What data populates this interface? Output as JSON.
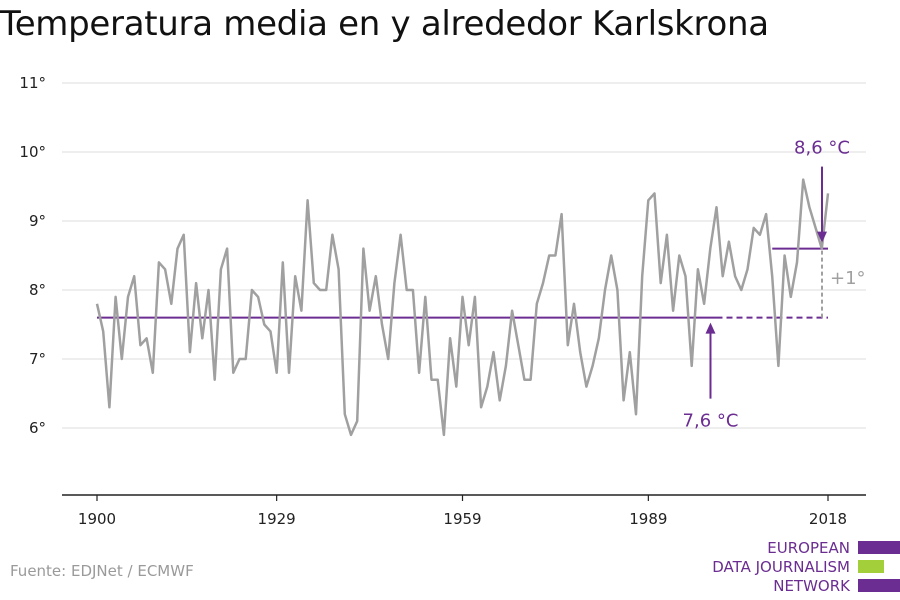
{
  "title": "Temperatura media en y alrededor Karlskrona",
  "source": "Fuente: EDJNet / ECMWF",
  "logo": {
    "lines": [
      "EUROPEAN",
      "DATA JOURNALISM",
      "NETWORK"
    ],
    "colors": [
      "#6b2d91",
      "#a3cf3b",
      "#6b2d91"
    ]
  },
  "colors": {
    "series": "#a0a0a0",
    "accent": "#6b2d91",
    "diff": "#a0a0a0",
    "grid": "#dddddd",
    "axis": "#222222"
  },
  "chart_data": {
    "type": "line",
    "title": "Temperatura media en y alrededor Karlskrona",
    "xlabel": "",
    "ylabel": "",
    "xlim": [
      1900,
      2018
    ],
    "ylim": [
      5,
      11
    ],
    "x_ticks": [
      1900,
      1929,
      1959,
      1989,
      2018
    ],
    "y_ticks": [
      {
        "value": 6,
        "label": "6°"
      },
      {
        "value": 7,
        "label": "7°"
      },
      {
        "value": 8,
        "label": "8°"
      },
      {
        "value": 9,
        "label": "9°"
      },
      {
        "value": 10,
        "label": "10°"
      },
      {
        "value": 11,
        "label": "11°"
      }
    ],
    "grid": true,
    "series": [
      {
        "x": [
          1900,
          1901,
          1902,
          1903,
          1904,
          1905,
          1906,
          1907,
          1908,
          1909,
          1910,
          1911,
          1912,
          1913,
          1914,
          1915,
          1916,
          1917,
          1918,
          1919,
          1920,
          1921,
          1922,
          1923,
          1924,
          1925,
          1926,
          1927,
          1928,
          1929,
          1930,
          1931,
          1932,
          1933,
          1934,
          1935,
          1936,
          1937,
          1938,
          1939,
          1940,
          1941,
          1942,
          1943,
          1944,
          1945,
          1946,
          1947,
          1948,
          1949,
          1950,
          1951,
          1952,
          1953,
          1954,
          1955,
          1956,
          1957,
          1958,
          1959,
          1960,
          1961,
          1962,
          1963,
          1964,
          1965,
          1966,
          1967,
          1968,
          1969,
          1970,
          1971,
          1972,
          1973,
          1974,
          1975,
          1976,
          1977,
          1978,
          1979,
          1980,
          1981,
          1982,
          1983,
          1984,
          1985,
          1986,
          1987,
          1988,
          1989,
          1990,
          1991,
          1992,
          1993,
          1994,
          1995,
          1996,
          1997,
          1998,
          1999,
          2000,
          2001,
          2002,
          2003,
          2004,
          2005,
          2006,
          2007,
          2008,
          2009,
          2010,
          2011,
          2012,
          2013,
          2014,
          2015,
          2016,
          2017,
          2018
        ],
        "values": [
          7.8,
          7.4,
          6.3,
          7.9,
          7.0,
          7.9,
          8.2,
          7.2,
          7.3,
          6.8,
          8.4,
          8.3,
          7.8,
          8.6,
          8.8,
          7.1,
          8.1,
          7.3,
          8.0,
          6.7,
          8.3,
          8.6,
          6.8,
          7.0,
          7.0,
          8.0,
          7.9,
          7.5,
          7.4,
          6.8,
          8.4,
          6.8,
          8.2,
          7.7,
          9.3,
          8.1,
          8.0,
          8.0,
          8.8,
          8.3,
          6.2,
          5.9,
          6.1,
          8.6,
          7.7,
          8.2,
          7.5,
          7.0,
          8.1,
          8.8,
          8.0,
          8.0,
          6.8,
          7.9,
          6.7,
          6.7,
          5.9,
          7.3,
          6.6,
          7.9,
          7.2,
          7.9,
          6.3,
          6.6,
          7.1,
          6.4,
          6.9,
          7.7,
          7.2,
          6.7,
          6.7,
          7.8,
          8.1,
          8.5,
          8.5,
          9.1,
          7.2,
          7.8,
          7.1,
          6.6,
          6.9,
          7.3,
          8.0,
          8.5,
          8.0,
          6.4,
          7.1,
          6.2,
          8.2,
          9.3,
          9.4,
          8.1,
          8.8,
          7.7,
          8.5,
          8.2,
          6.9,
          8.3,
          7.8,
          8.6,
          9.2,
          8.2,
          8.7,
          8.2,
          8.0,
          8.3,
          8.9,
          8.8,
          9.1,
          8.2,
          6.9,
          8.5,
          7.9,
          8.4,
          9.6,
          9.2,
          8.9,
          8.6,
          9.4
        ]
      }
    ],
    "reference_lines": [
      {
        "name": "baseline",
        "value": 7.6,
        "x_start": 1900,
        "x_end": 2000,
        "x_dashed_end": 2018,
        "color": "#6b2d91"
      },
      {
        "name": "recent",
        "value": 8.6,
        "x_start": 2009,
        "x_end": 2018,
        "color": "#6b2d91"
      }
    ],
    "annotations": [
      {
        "text": "7,6 °C",
        "x": 2000,
        "y": 7.6,
        "arrow": "up",
        "color": "#6b2d91"
      },
      {
        "text": "8,6 °C",
        "x": 2018,
        "y": 8.6,
        "arrow": "down",
        "color": "#6b2d91"
      },
      {
        "text": "+1°",
        "x": 2018,
        "y": 8.1,
        "color": "#a0a0a0"
      }
    ]
  }
}
